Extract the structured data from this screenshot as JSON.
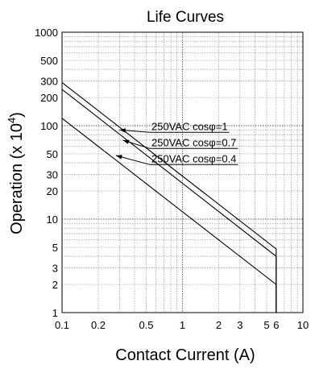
{
  "chart_data": {
    "type": "line",
    "title": "Life Curves",
    "xlabel": "Contact Current (A)",
    "ylabel_main": "Operation (x 10",
    "ylabel_sup": "4",
    "ylabel_close": ")",
    "x_scale": "log",
    "y_scale": "log",
    "xlim": [
      0.1,
      10
    ],
    "ylim": [
      1,
      1000
    ],
    "grid": true,
    "x_ticks": [
      {
        "value": 0.1,
        "label": "0.1"
      },
      {
        "value": 0.2,
        "label": "0.2"
      },
      {
        "value": 0.5,
        "label": "0.5"
      },
      {
        "value": 1,
        "label": "1"
      },
      {
        "value": 2,
        "label": "2"
      },
      {
        "value": 3,
        "label": "3"
      },
      {
        "value": 5,
        "label": "5"
      },
      {
        "value": 6,
        "label": "6"
      },
      {
        "value": 10,
        "label": "10"
      }
    ],
    "y_ticks": [
      {
        "value": 1,
        "label": "1"
      },
      {
        "value": 2,
        "label": "2"
      },
      {
        "value": 3,
        "label": "3"
      },
      {
        "value": 5,
        "label": "5"
      },
      {
        "value": 10,
        "label": "10"
      },
      {
        "value": 20,
        "label": "20"
      },
      {
        "value": 30,
        "label": "30"
      },
      {
        "value": 50,
        "label": "50"
      },
      {
        "value": 100,
        "label": "100"
      },
      {
        "value": 200,
        "label": "200"
      },
      {
        "value": 300,
        "label": "300"
      },
      {
        "value": 500,
        "label": "500"
      },
      {
        "value": 1000,
        "label": "1000"
      }
    ],
    "series": [
      {
        "name": "250VAC cosφ=1",
        "x": [
          0.1,
          6,
          6
        ],
        "y": [
          290,
          4.8,
          1
        ],
        "pointer": [
          0.3,
          90
        ]
      },
      {
        "name": "250VAC cosφ=0.7",
        "x": [
          0.1,
          6,
          6
        ],
        "y": [
          245,
          4.0,
          1
        ],
        "pointer": [
          0.32,
          70
        ]
      },
      {
        "name": "250VAC cosφ=0.4",
        "x": [
          0.1,
          6,
          6
        ],
        "y": [
          120,
          2.0,
          1
        ],
        "pointer": [
          0.28,
          48
        ]
      }
    ]
  }
}
